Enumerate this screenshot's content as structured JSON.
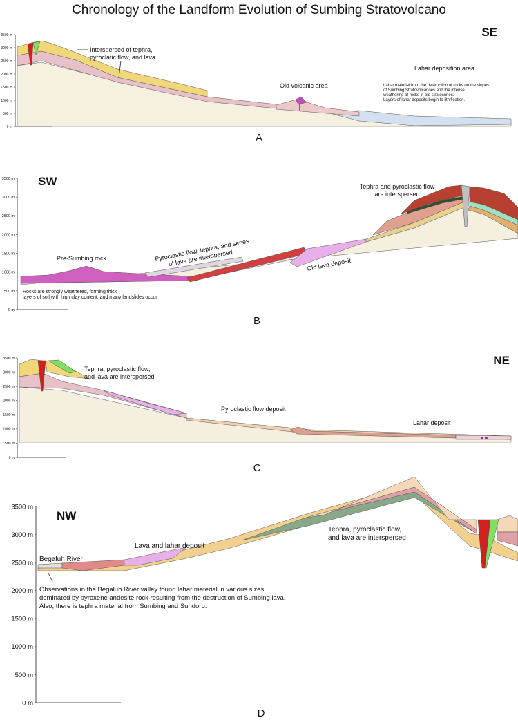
{
  "title": "Chronology of the Landform Evolution of Sumbing Stratovolcano",
  "panels": [
    {
      "label": "A",
      "direction": "SE",
      "yticks": [
        "3500 m",
        "3000 m",
        "2500 m",
        "2000 m",
        "1500 m",
        "1000 m",
        "500 m",
        "0 m"
      ],
      "annotations": [
        [
          "Interspersed of tephra,",
          "pyroclatic flow, and lava"
        ],
        [
          "Old volcanic area"
        ],
        [
          "Lahar deposition area."
        ],
        [
          "Lahar material from the destruction of rocks on the slopes",
          "of Sumbing Stratovolcanoes and the intense",
          "weathering of rocks in old stratocones.",
          "Layers of lahar deposits begin to lithification."
        ]
      ]
    },
    {
      "label": "B",
      "direction": "SW",
      "yticks": [
        "3500 m",
        "3000 m",
        "2500 m",
        "2000 m",
        "1500 m",
        "1000 m",
        "500 m",
        "0 m"
      ],
      "annotations": [
        [
          "Tephra and pyroclastic flow",
          "are interspersed"
        ],
        [
          "Pre-Sumbing rock"
        ],
        [
          "Pyroclastic flow, tephra, and series",
          "of lava are interspersed"
        ],
        [
          "Old lava deposit"
        ],
        [
          "Rocks are strongly weathered, forming thick",
          "layers of soil with high clay content, and many landslides occur"
        ]
      ]
    },
    {
      "label": "C",
      "direction": "NE",
      "yticks": [
        "3500 m",
        "3000 m",
        "2500 m",
        "2000 m",
        "1500 m",
        "1000 m",
        "500 m",
        "0 m"
      ],
      "annotations": [
        [
          "Tephra, pyroclastic flow,",
          "and lava are interspersed"
        ],
        [
          "Pyroclastic flow deposit"
        ],
        [
          "Lahar deposit"
        ]
      ]
    },
    {
      "label": "D",
      "direction": "NW",
      "yticks": [
        "3500 m",
        "3000 m",
        "2500 m",
        "2000 m",
        "1500 m",
        "1000 m",
        "500 m",
        "0 m"
      ],
      "annotations": [
        [
          "Tephra, pyroclastic flow,",
          "and lava are interspersed"
        ],
        [
          "Lava and lahar deposit"
        ],
        [
          "Begaluh River"
        ],
        [
          "Observations in the Begaluh River valley found lahar material in various sizes,",
          "dominated by pyroxene andesite rock resulting from the destruction of Sumbing lava.",
          "Also, there is tephra material from Sumbing and Sundoro."
        ]
      ]
    }
  ]
}
